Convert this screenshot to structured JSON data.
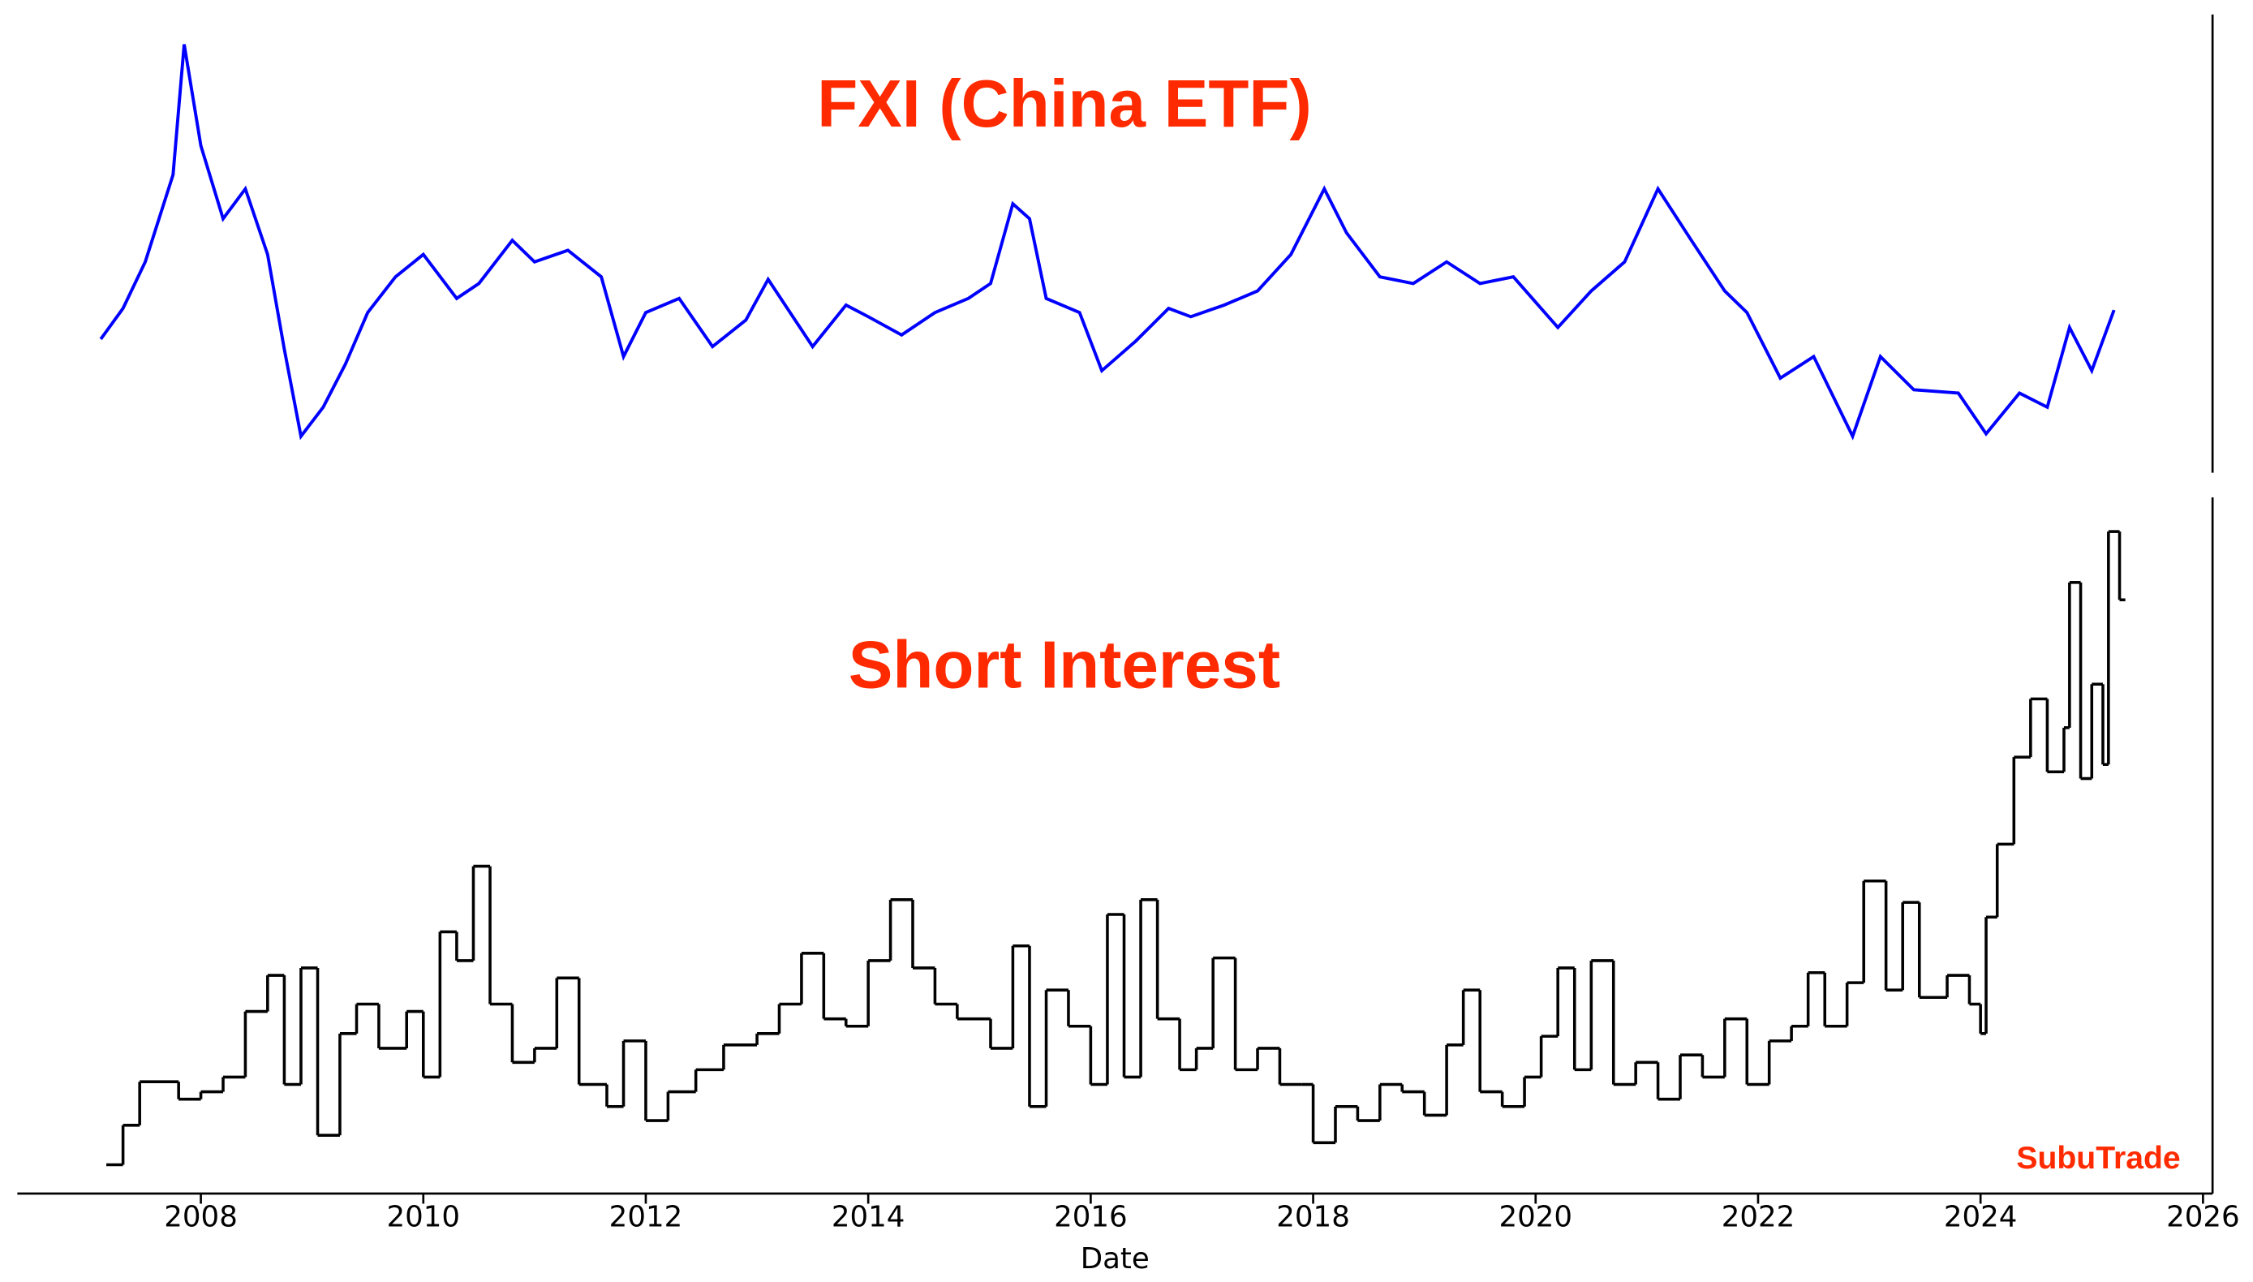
{
  "chart_data": [
    {
      "type": "line",
      "title": "FXI (China ETF)",
      "color": "#0000ff",
      "ylim": [
        17.4,
        72.6
      ],
      "x": [
        2007.1,
        2007.3,
        2007.5,
        2007.75,
        2007.85,
        2008.0,
        2008.2,
        2008.4,
        2008.6,
        2008.75,
        2008.9,
        2009.1,
        2009.3,
        2009.5,
        2009.75,
        2010.0,
        2010.3,
        2010.5,
        2010.8,
        2011.0,
        2011.3,
        2011.6,
        2011.8,
        2012.0,
        2012.3,
        2012.6,
        2012.9,
        2013.1,
        2013.5,
        2013.8,
        2014.0,
        2014.3,
        2014.6,
        2014.9,
        2015.1,
        2015.3,
        2015.45,
        2015.6,
        2015.9,
        2016.1,
        2016.4,
        2016.7,
        2016.9,
        2017.2,
        2017.5,
        2017.8,
        2018.1,
        2018.3,
        2018.6,
        2018.9,
        2019.2,
        2019.5,
        2019.8,
        2020.2,
        2020.5,
        2020.8,
        2021.1,
        2021.4,
        2021.7,
        2021.9,
        2022.2,
        2022.5,
        2022.85,
        2023.1,
        2023.4,
        2023.8,
        2024.05,
        2024.35,
        2024.6,
        2024.8,
        2025.0,
        2025.2
      ],
      "values": [
        33.5,
        37.2,
        42.8,
        53.3,
        69,
        56.8,
        48,
        51.6,
        43.7,
        32.3,
        21.8,
        25.3,
        30.5,
        36.7,
        41,
        43.7,
        38.4,
        40.2,
        45.4,
        42.8,
        44.2,
        41,
        31.4,
        36.7,
        38.4,
        32.6,
        35.8,
        40.7,
        32.6,
        37.6,
        36.2,
        34,
        36.7,
        38.4,
        40.2,
        49.8,
        48,
        38.4,
        36.7,
        29.7,
        33.2,
        37.2,
        36.2,
        37.6,
        39.3,
        43.7,
        51.6,
        46.3,
        41,
        40.2,
        42.8,
        40.2,
        41,
        34.9,
        39.3,
        42.8,
        51.6,
        45.4,
        39.3,
        36.7,
        28.8,
        31.4,
        21.8,
        31.4,
        27.4,
        27,
        22.1,
        27,
        25.3,
        34.9,
        29.7,
        37
      ]
    },
    {
      "type": "step",
      "title": "Short Interest",
      "color": "#000000",
      "ylim": [
        0,
        104
      ],
      "watermark": "SubuTrade",
      "xlabel": "Date",
      "xlim": [
        2006.35,
        2026.06
      ],
      "xticks": [
        2008,
        2010,
        2012,
        2014,
        2016,
        2018,
        2020,
        2022,
        2024,
        2026
      ],
      "x": [
        2007.15,
        2007.3,
        2007.45,
        2007.8,
        2008.0,
        2008.2,
        2008.4,
        2008.6,
        2008.75,
        2008.9,
        2009.05,
        2009.25,
        2009.4,
        2009.6,
        2009.85,
        2010.0,
        2010.15,
        2010.3,
        2010.45,
        2010.6,
        2010.8,
        2011.0,
        2011.2,
        2011.4,
        2011.65,
        2011.8,
        2012.0,
        2012.2,
        2012.45,
        2012.7,
        2013.0,
        2013.2,
        2013.4,
        2013.6,
        2013.8,
        2014.0,
        2014.2,
        2014.4,
        2014.6,
        2014.8,
        2015.1,
        2015.3,
        2015.45,
        2015.6,
        2015.8,
        2016.0,
        2016.15,
        2016.3,
        2016.45,
        2016.6,
        2016.8,
        2016.95,
        2017.1,
        2017.3,
        2017.5,
        2017.7,
        2017.9,
        2018.0,
        2018.2,
        2018.4,
        2018.6,
        2018.8,
        2019.0,
        2019.2,
        2019.35,
        2019.5,
        2019.7,
        2019.9,
        2020.05,
        2020.2,
        2020.35,
        2020.5,
        2020.7,
        2020.9,
        2021.1,
        2021.3,
        2021.5,
        2021.7,
        2021.9,
        2022.1,
        2022.3,
        2022.45,
        2022.6,
        2022.8,
        2022.95,
        2023.15,
        2023.3,
        2023.45,
        2023.7,
        2023.9,
        2024.0,
        2024.05,
        2024.15,
        2024.3,
        2024.45,
        2024.6,
        2024.75,
        2024.8,
        2024.9,
        2025.0,
        2025.1,
        2025.15,
        2025.25
      ],
      "values": [
        4.3,
        10.2,
        16.7,
        14.1,
        15.2,
        17.4,
        27.2,
        32.6,
        16.3,
        33.7,
        8.7,
        23.9,
        28.3,
        21.7,
        27.2,
        17.4,
        39.1,
        34.8,
        48.9,
        28.3,
        19.6,
        21.7,
        32.2,
        16.3,
        13,
        22.8,
        10.9,
        15.2,
        18.5,
        22.2,
        23.9,
        28.3,
        35.9,
        26.1,
        25,
        34.8,
        43.9,
        33.7,
        28.3,
        26.1,
        21.7,
        37,
        13,
        30.4,
        25,
        16.3,
        41.7,
        17.4,
        43.9,
        26.1,
        18.5,
        21.7,
        35.2,
        18.5,
        21.7,
        16.3,
        16.3,
        7.6,
        13,
        10.9,
        16.3,
        15.2,
        11.7,
        22.2,
        30.4,
        15.2,
        13,
        17.4,
        23.5,
        33.7,
        18.5,
        34.8,
        16.3,
        19.6,
        14.1,
        20.7,
        17.4,
        26.1,
        16.3,
        22.8,
        25,
        33,
        25,
        31.5,
        46.7,
        30.4,
        43.5,
        29.3,
        32.6,
        28.3,
        23.9,
        41.3,
        52.2,
        65.2,
        73.9,
        63,
        69.6,
        91.3,
        62,
        76.1,
        64.1,
        98.9,
        88.7
      ]
    }
  ]
}
